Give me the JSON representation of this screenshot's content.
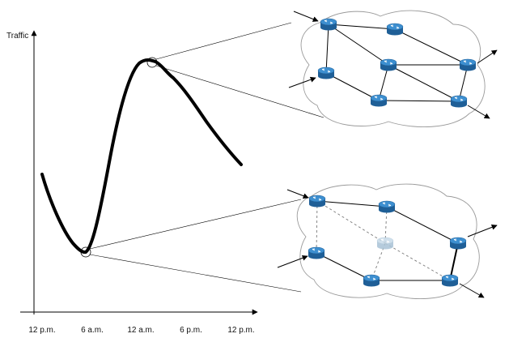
{
  "diagram": {
    "y_axis_label": "Traffic",
    "x_ticks": [
      "12 p.m.",
      "6 a.m.",
      "12 a.m.",
      "6 p.m.",
      "12 p.m."
    ]
  },
  "networks": [
    {
      "id": "peak",
      "state": "all routers active",
      "routers": [
        {
          "id": "r1",
          "active": true
        },
        {
          "id": "r2",
          "active": true
        },
        {
          "id": "r3",
          "active": true
        },
        {
          "id": "r4",
          "active": true
        },
        {
          "id": "r5",
          "active": true
        },
        {
          "id": "r6",
          "active": true
        },
        {
          "id": "r7",
          "active": true
        }
      ]
    },
    {
      "id": "trough",
      "state": "one router sleeping, some links off",
      "routers": [
        {
          "id": "r1",
          "active": true
        },
        {
          "id": "r2",
          "active": true
        },
        {
          "id": "r3",
          "active": false
        },
        {
          "id": "r4",
          "active": true
        },
        {
          "id": "r5",
          "active": true
        },
        {
          "id": "r6",
          "active": true
        },
        {
          "id": "r7",
          "active": true
        }
      ]
    }
  ],
  "colors": {
    "router_top": "#3d8fd0",
    "router_side": "#1f5f97",
    "router_sleep_top": "#c8dbe9",
    "router_sleep_side": "#a9c3d6",
    "curve": "#000000",
    "cloud": "#9a9a9a",
    "dashed_link": "#7a7a7a"
  }
}
